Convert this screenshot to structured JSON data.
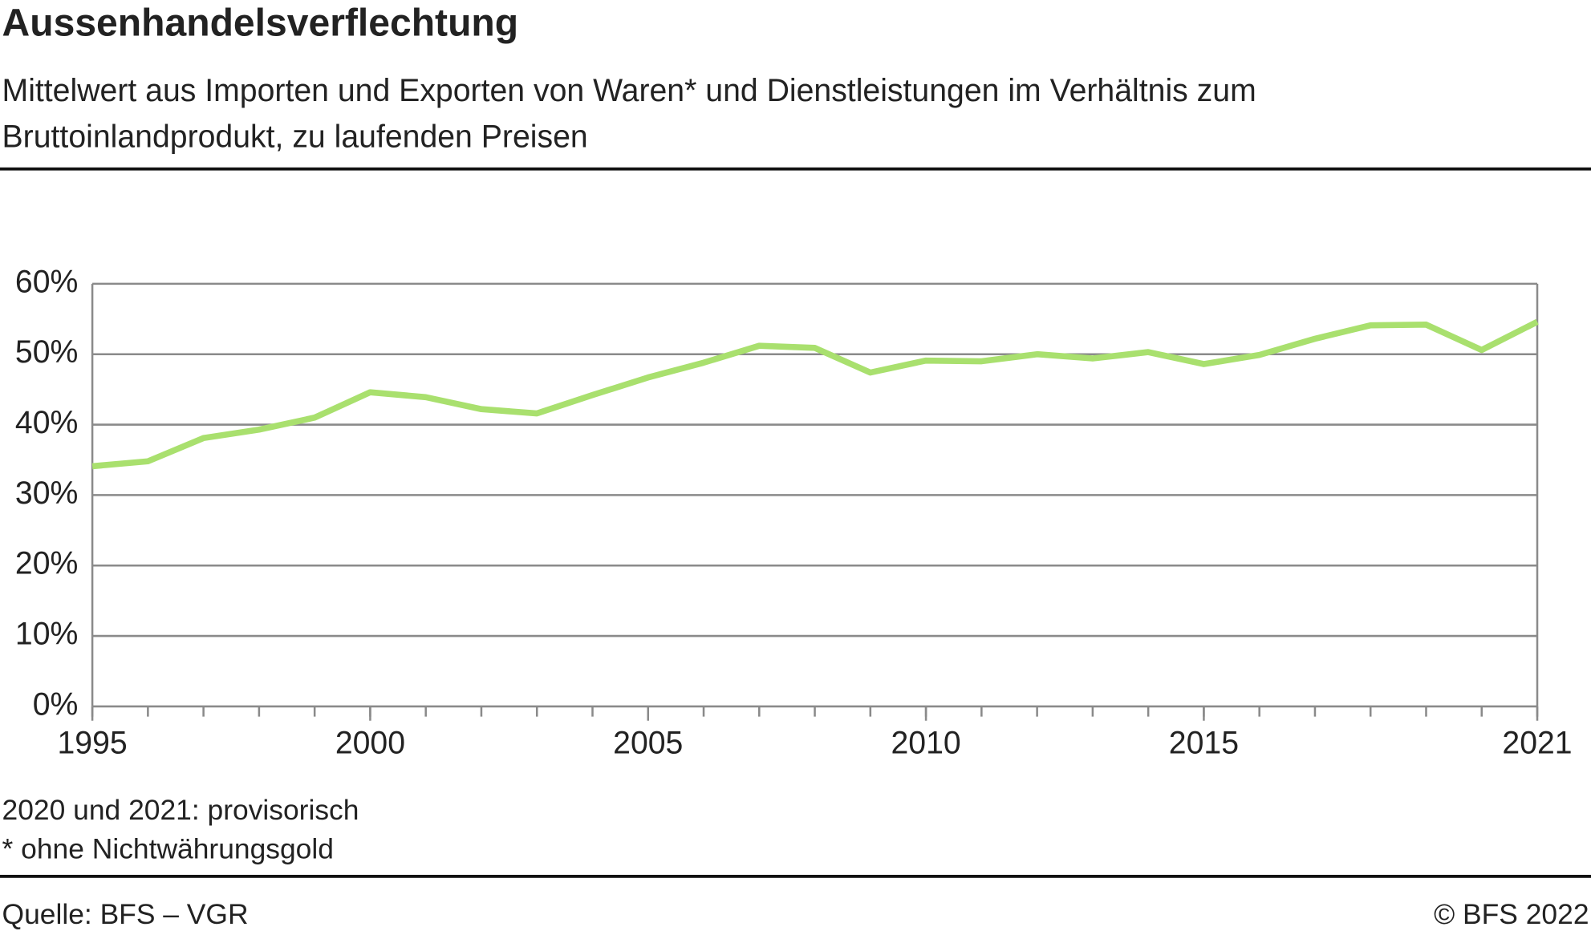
{
  "chart_data": {
    "type": "line",
    "title": "Aussenhandelsverflechtung",
    "subtitle": "Mittelwert aus Importen und Exporten von Waren* und Dienstleistungen im Verhältnis zum Bruttoinlandprodukt, zu laufenden Preisen",
    "x": [
      1995,
      1996,
      1997,
      1998,
      1999,
      2000,
      2001,
      2002,
      2003,
      2004,
      2005,
      2006,
      2007,
      2008,
      2009,
      2010,
      2011,
      2012,
      2013,
      2014,
      2015,
      2016,
      2017,
      2018,
      2019,
      2020,
      2021
    ],
    "series": [
      {
        "color": "#a9e06e",
        "values": [
          34.1,
          34.8,
          38.1,
          39.3,
          41.0,
          44.6,
          43.9,
          42.2,
          41.6,
          44.2,
          46.7,
          48.8,
          51.2,
          50.9,
          47.4,
          49.1,
          49.0,
          50.0,
          49.4,
          50.3,
          48.6,
          49.9,
          52.2,
          54.1,
          54.2,
          50.6,
          54.6
        ]
      }
    ],
    "xlim": [
      1995,
      2021
    ],
    "xticks": [
      1995,
      2000,
      2005,
      2010,
      2015,
      2021
    ],
    "ylim": [
      0,
      60
    ],
    "yticks": [
      {
        "value": 0,
        "label": "0%"
      },
      {
        "value": 10,
        "label": "10%"
      },
      {
        "value": 20,
        "label": "20%"
      },
      {
        "value": 30,
        "label": "30%"
      },
      {
        "value": 40,
        "label": "40%"
      },
      {
        "value": 50,
        "label": "50%"
      },
      {
        "value": 60,
        "label": "60%"
      }
    ],
    "grid": true,
    "notes": [
      "2020 und 2021: provisorisch",
      "* ohne Nichtwährungsgold"
    ],
    "source": "Quelle: BFS – VGR",
    "copyright": "© BFS 2022"
  }
}
